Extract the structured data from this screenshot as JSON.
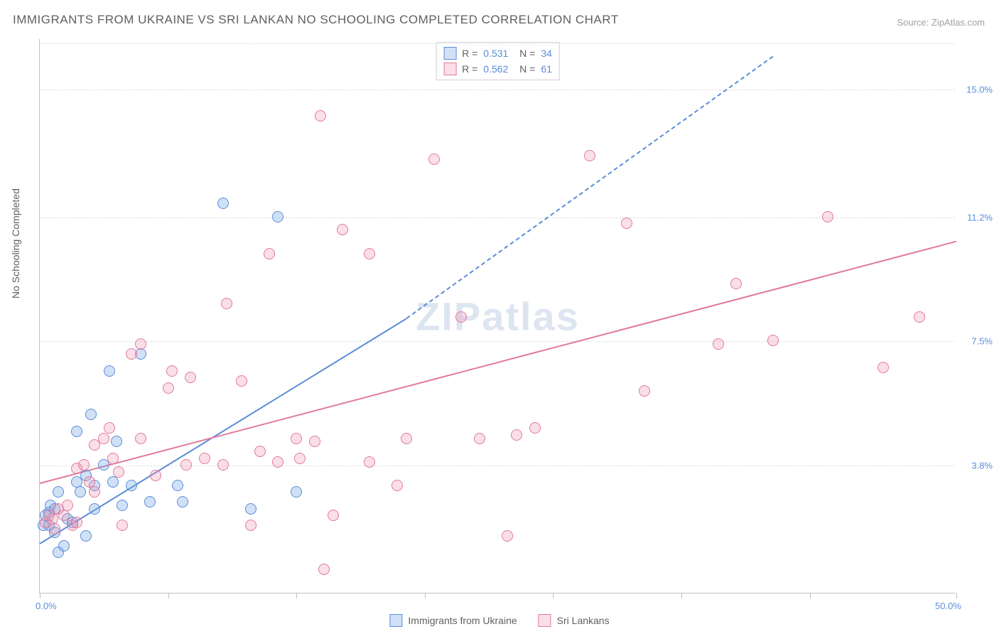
{
  "title": "IMMIGRANTS FROM UKRAINE VS SRI LANKAN NO SCHOOLING COMPLETED CORRELATION CHART",
  "source_label": "Source: ZipAtlas.com",
  "ylabel": "No Schooling Completed",
  "watermark": "ZIPatlas",
  "colors": {
    "series1_fill": "rgba(120,170,230,0.35)",
    "series1_stroke": "#5b8dd6",
    "series2_fill": "rgba(240,150,180,0.30)",
    "series2_stroke": "#e17a9b",
    "text": "#606060",
    "value": "#5b8dd6",
    "grid": "#e0e0e0",
    "axis": "#c0c0c0"
  },
  "chart": {
    "type": "scatter",
    "xlim": [
      0,
      50
    ],
    "ylim": [
      0,
      16.5
    ],
    "x_ticks": [
      0,
      7,
      14,
      21,
      28,
      35,
      42,
      50
    ],
    "x_tick_labels": {
      "0": "0.0%",
      "50": "50.0%"
    },
    "y_ticks": [
      3.8,
      7.5,
      11.2,
      15.0
    ],
    "y_tick_labels": [
      "3.8%",
      "7.5%",
      "11.2%",
      "15.0%"
    ],
    "dot_radius": 8,
    "series": [
      {
        "name": "Immigrants from Ukraine",
        "R": "0.531",
        "N": "34",
        "trend": {
          "x1": 0,
          "y1": 1.5,
          "x2": 20,
          "y2": 8.2,
          "dash_to_x": 40,
          "dash_to_y": 16.0
        },
        "points": [
          [
            0.2,
            2.0
          ],
          [
            0.3,
            2.3
          ],
          [
            0.5,
            2.4
          ],
          [
            0.5,
            2.0
          ],
          [
            0.6,
            2.6
          ],
          [
            0.8,
            1.8
          ],
          [
            0.8,
            2.5
          ],
          [
            1.0,
            1.2
          ],
          [
            1.0,
            3.0
          ],
          [
            1.3,
            1.4
          ],
          [
            1.5,
            2.2
          ],
          [
            1.8,
            2.1
          ],
          [
            2.0,
            3.3
          ],
          [
            2.0,
            4.8
          ],
          [
            2.2,
            3.0
          ],
          [
            2.5,
            3.5
          ],
          [
            2.5,
            1.7
          ],
          [
            2.8,
            5.3
          ],
          [
            3.0,
            3.2
          ],
          [
            3.0,
            2.5
          ],
          [
            3.5,
            3.8
          ],
          [
            3.8,
            6.6
          ],
          [
            4.0,
            3.3
          ],
          [
            4.2,
            4.5
          ],
          [
            4.5,
            2.6
          ],
          [
            5.0,
            3.2
          ],
          [
            5.5,
            7.1
          ],
          [
            6.0,
            2.7
          ],
          [
            7.8,
            2.7
          ],
          [
            7.5,
            3.2
          ],
          [
            10.0,
            11.6
          ],
          [
            11.5,
            2.5
          ],
          [
            13.0,
            11.2
          ],
          [
            14.0,
            3.0
          ]
        ]
      },
      {
        "name": "Sri Lankans",
        "R": "0.562",
        "N": "61",
        "trend": {
          "x1": 0,
          "y1": 3.3,
          "x2": 50,
          "y2": 10.5
        },
        "points": [
          [
            0.3,
            2.1
          ],
          [
            0.5,
            2.3
          ],
          [
            0.7,
            2.2
          ],
          [
            0.8,
            1.9
          ],
          [
            1.0,
            2.5
          ],
          [
            1.3,
            2.3
          ],
          [
            1.5,
            2.6
          ],
          [
            1.8,
            2.0
          ],
          [
            2.0,
            2.1
          ],
          [
            2.0,
            3.7
          ],
          [
            2.4,
            3.8
          ],
          [
            2.7,
            3.3
          ],
          [
            3.0,
            4.4
          ],
          [
            3.0,
            3.0
          ],
          [
            3.5,
            4.6
          ],
          [
            3.8,
            4.9
          ],
          [
            4.0,
            4.0
          ],
          [
            4.3,
            3.6
          ],
          [
            4.5,
            2.0
          ],
          [
            5.0,
            7.1
          ],
          [
            5.5,
            4.6
          ],
          [
            5.5,
            7.4
          ],
          [
            6.3,
            3.5
          ],
          [
            7.0,
            6.1
          ],
          [
            7.2,
            6.6
          ],
          [
            8.0,
            3.8
          ],
          [
            8.2,
            6.4
          ],
          [
            9.0,
            4.0
          ],
          [
            10.0,
            3.8
          ],
          [
            10.2,
            8.6
          ],
          [
            11.0,
            6.3
          ],
          [
            11.5,
            2.0
          ],
          [
            12.0,
            4.2
          ],
          [
            12.5,
            10.1
          ],
          [
            13.0,
            3.9
          ],
          [
            14.0,
            4.6
          ],
          [
            14.2,
            4.0
          ],
          [
            15.0,
            4.5
          ],
          [
            15.3,
            14.2
          ],
          [
            15.5,
            0.7
          ],
          [
            16.0,
            2.3
          ],
          [
            16.5,
            10.8
          ],
          [
            18.0,
            3.9
          ],
          [
            18.0,
            10.1
          ],
          [
            19.5,
            3.2
          ],
          [
            20.0,
            4.6
          ],
          [
            21.5,
            12.9
          ],
          [
            23.0,
            8.2
          ],
          [
            24.0,
            4.6
          ],
          [
            25.5,
            1.7
          ],
          [
            26.0,
            4.7
          ],
          [
            27.0,
            4.9
          ],
          [
            30.0,
            13.0
          ],
          [
            32.0,
            11.0
          ],
          [
            33.0,
            6.0
          ],
          [
            37.0,
            7.4
          ],
          [
            38.0,
            9.2
          ],
          [
            40.0,
            7.5
          ],
          [
            43.0,
            11.2
          ],
          [
            46.0,
            6.7
          ],
          [
            48.0,
            8.2
          ]
        ]
      }
    ]
  },
  "bottom_legend": [
    {
      "label": "Immigrants from Ukraine",
      "swatch": 0
    },
    {
      "label": "Sri Lankans",
      "swatch": 1
    }
  ]
}
